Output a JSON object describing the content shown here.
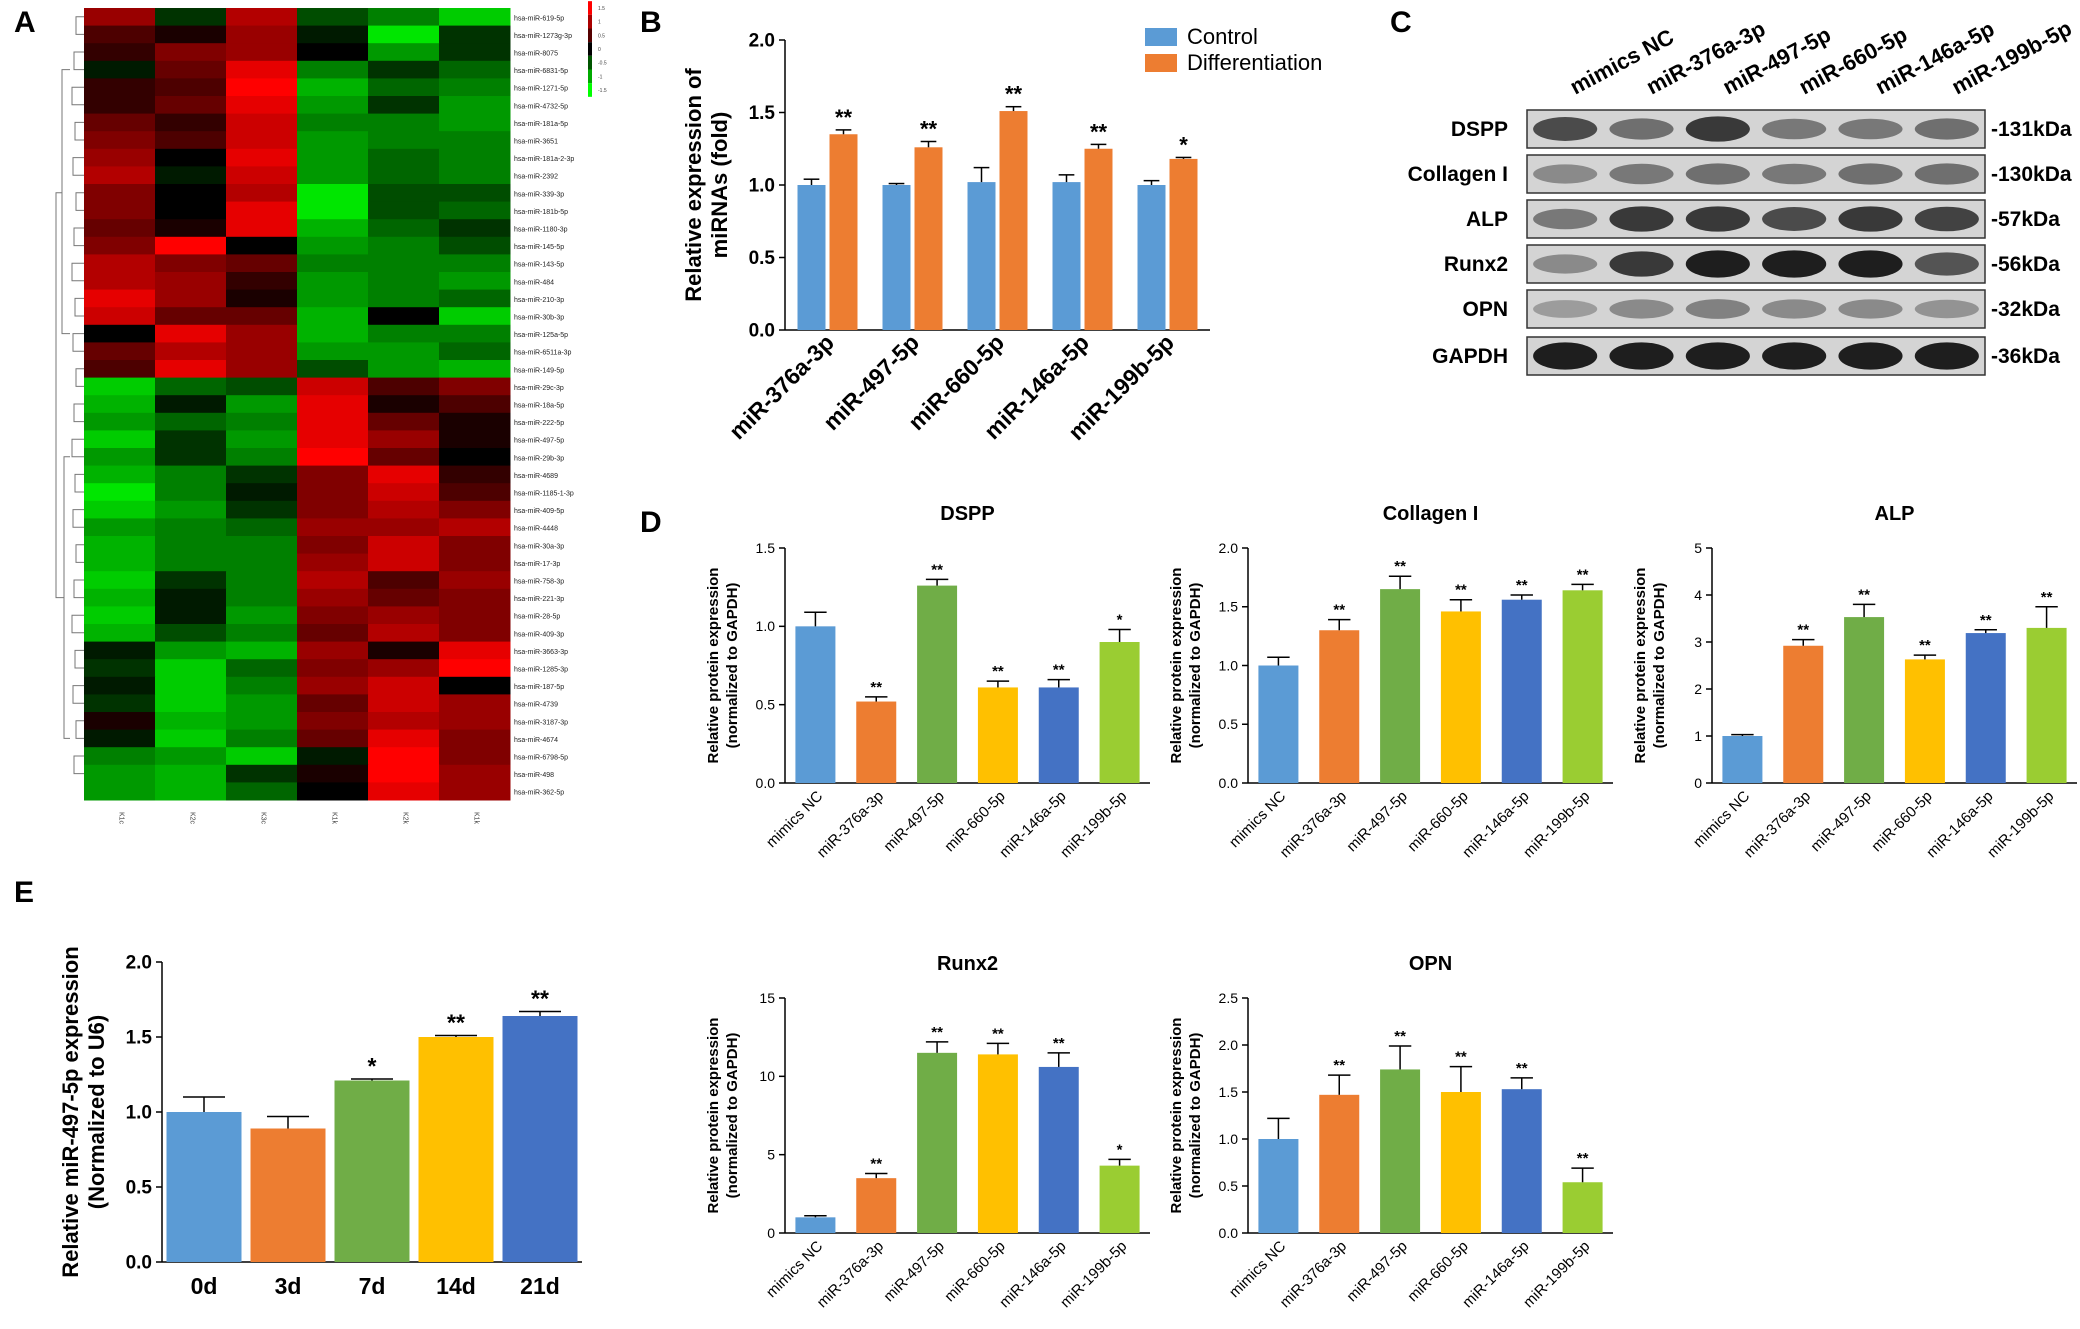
{
  "colors": {
    "control": "#5b9bd5",
    "differentiation": "#ed7d31",
    "mimics_nc": "#5b9bd5",
    "mir376": "#ed7d31",
    "mir497": "#70ad47",
    "mir660": "#ffc000",
    "mir146": "#4472c4",
    "mir199": "#9acd32",
    "day0": "#5b9bd5",
    "day3": "#ed7d31",
    "day7": "#70ad47",
    "day14": "#ffc000",
    "day21": "#4472c4",
    "heat_high": "#ff0000",
    "heat_low": "#00ff00",
    "heat_mid": "#000000"
  },
  "panels": {
    "A": "A",
    "B": "B",
    "C": "C",
    "D": "D",
    "E": "E"
  },
  "heatmap": {
    "rows": [
      "hsa-miR-619-5p",
      "hsa-miR-1273g-3p",
      "hsa-miR-8075",
      "hsa-miR-6831-5p",
      "hsa-miR-1271-5p",
      "hsa-miR-4732-5p",
      "hsa-miR-181a-5p",
      "hsa-miR-3651",
      "hsa-miR-181a-2-3p",
      "hsa-miR-2392",
      "hsa-miR-339-3p",
      "hsa-miR-181b-5p",
      "hsa-miR-1180-3p",
      "hsa-miR-145-5p",
      "hsa-miR-143-5p",
      "hsa-miR-484",
      "hsa-miR-210-3p",
      "hsa-miR-30b-3p",
      "hsa-miR-125a-5p",
      "hsa-miR-6511a-3p",
      "hsa-miR-149-5p",
      "hsa-miR-29c-3p",
      "hsa-miR-18a-5p",
      "hsa-miR-222-5p",
      "hsa-miR-497-5p",
      "hsa-miR-29b-3p",
      "hsa-miR-4689",
      "hsa-miR-1185-1-3p",
      "hsa-miR-409-5p",
      "hsa-miR-4448",
      "hsa-miR-30a-3p",
      "hsa-miR-17-3p",
      "hsa-miR-758-3p",
      "hsa-miR-221-3p",
      "hsa-miR-28-5p",
      "hsa-miR-409-3p",
      "hsa-miR-3663-3p",
      "hsa-miR-1285-3p",
      "hsa-miR-187-5p",
      "hsa-miR-4739",
      "hsa-miR-3187-3p",
      "hsa-miR-4674",
      "hsa-miR-6798-5p",
      "hsa-miR-498",
      "hsa-miR-362-5p"
    ],
    "columns": [
      "K1c",
      "K2c",
      "K3c",
      "K1k",
      "K2k",
      "K1k"
    ],
    "values": [
      [
        0.6,
        -0.2,
        0.7,
        -0.3,
        -0.5,
        -0.8
      ],
      [
        0.3,
        0.1,
        0.6,
        -0.1,
        -0.9,
        -0.2
      ],
      [
        0.2,
        0.5,
        0.6,
        0.0,
        -0.6,
        -0.2
      ],
      [
        -0.1,
        0.4,
        0.9,
        -0.5,
        -0.2,
        -0.4
      ],
      [
        0.2,
        0.3,
        1.0,
        -0.7,
        -0.4,
        -0.5
      ],
      [
        0.2,
        0.4,
        0.9,
        -0.6,
        -0.2,
        -0.6
      ],
      [
        0.4,
        0.2,
        0.8,
        -0.5,
        -0.5,
        -0.6
      ],
      [
        0.5,
        0.3,
        0.8,
        -0.6,
        -0.5,
        -0.5
      ],
      [
        0.6,
        0.0,
        0.9,
        -0.6,
        -0.4,
        -0.5
      ],
      [
        0.7,
        -0.1,
        0.8,
        -0.6,
        -0.4,
        -0.5
      ],
      [
        0.5,
        0.0,
        0.7,
        -0.9,
        -0.3,
        -0.3
      ],
      [
        0.5,
        0.0,
        0.9,
        -0.9,
        -0.3,
        -0.4
      ],
      [
        0.4,
        0.1,
        0.9,
        -0.7,
        -0.4,
        -0.2
      ],
      [
        0.5,
        1.0,
        0.0,
        -0.6,
        -0.5,
        -0.3
      ],
      [
        0.7,
        0.5,
        0.4,
        -0.5,
        -0.5,
        -0.5
      ],
      [
        0.7,
        0.6,
        0.2,
        -0.6,
        -0.5,
        -0.6
      ],
      [
        0.9,
        0.6,
        0.1,
        -0.6,
        -0.5,
        -0.4
      ],
      [
        0.8,
        0.4,
        0.4,
        -0.7,
        0.0,
        -0.8
      ],
      [
        0.0,
        0.9,
        0.6,
        -0.7,
        -0.5,
        -0.5
      ],
      [
        0.4,
        0.7,
        0.6,
        -0.6,
        -0.6,
        -0.4
      ],
      [
        0.3,
        0.9,
        0.6,
        -0.3,
        -0.6,
        -0.7
      ],
      [
        -0.8,
        -0.4,
        -0.3,
        0.8,
        0.3,
        0.5
      ],
      [
        -0.7,
        -0.1,
        -0.6,
        0.9,
        0.1,
        0.3
      ],
      [
        -0.6,
        -0.4,
        -0.5,
        0.9,
        0.4,
        0.1
      ],
      [
        -0.8,
        -0.2,
        -0.6,
        0.9,
        0.6,
        0.1
      ],
      [
        -0.6,
        -0.2,
        -0.5,
        1.0,
        0.4,
        0.0
      ],
      [
        -0.7,
        -0.5,
        -0.2,
        0.5,
        0.9,
        0.2
      ],
      [
        -0.9,
        -0.5,
        -0.1,
        0.5,
        0.8,
        0.3
      ],
      [
        -0.8,
        -0.6,
        -0.2,
        0.5,
        0.7,
        0.5
      ],
      [
        -0.6,
        -0.5,
        -0.4,
        0.6,
        0.6,
        0.7
      ],
      [
        -0.7,
        -0.5,
        -0.5,
        0.5,
        0.8,
        0.5
      ],
      [
        -0.7,
        -0.5,
        -0.5,
        0.6,
        0.8,
        0.5
      ],
      [
        -0.8,
        -0.2,
        -0.5,
        0.7,
        0.3,
        0.6
      ],
      [
        -0.7,
        -0.1,
        -0.5,
        0.6,
        0.4,
        0.5
      ],
      [
        -0.8,
        -0.1,
        -0.6,
        0.5,
        0.6,
        0.5
      ],
      [
        -0.7,
        -0.3,
        -0.5,
        0.4,
        0.7,
        0.5
      ],
      [
        -0.1,
        -0.6,
        -0.7,
        0.6,
        0.1,
        0.9
      ],
      [
        -0.2,
        -0.8,
        -0.4,
        0.5,
        0.6,
        1.0
      ],
      [
        -0.1,
        -0.8,
        -0.5,
        0.6,
        0.8,
        0.0
      ],
      [
        -0.2,
        -0.8,
        -0.6,
        0.4,
        0.8,
        0.6
      ],
      [
        0.1,
        -0.7,
        -0.6,
        0.5,
        0.7,
        0.6
      ],
      [
        -0.1,
        -0.8,
        -0.5,
        0.4,
        0.9,
        0.5
      ],
      [
        -0.5,
        -0.6,
        -0.8,
        -0.1,
        1.0,
        0.5
      ],
      [
        -0.6,
        -0.7,
        -0.2,
        0.1,
        1.0,
        0.6
      ],
      [
        -0.6,
        -0.7,
        -0.4,
        0.0,
        0.9,
        0.6
      ]
    ],
    "scale_labels": [
      "1.5",
      "1",
      "0.5",
      "0",
      "-0.5",
      "-1",
      "-1.5"
    ]
  },
  "chart_data": [
    {
      "id": "B",
      "type": "bar",
      "title": "",
      "ylabel": "Relative expression of miRNAs (fold)",
      "ylabel_lines": [
        "Relative expression of",
        "miRNAs (fold)"
      ],
      "categories": [
        "miR-376a-3p",
        "miR-497-5p",
        "miR-660-5p",
        "miR-146a-5p",
        "miR-199b-5p"
      ],
      "series": [
        {
          "name": "Control",
          "values": [
            1.0,
            1.0,
            1.02,
            1.02,
            1.0
          ],
          "errors": [
            0.04,
            0.01,
            0.1,
            0.05,
            0.03
          ]
        },
        {
          "name": "Differentiation",
          "values": [
            1.35,
            1.26,
            1.51,
            1.25,
            1.18
          ],
          "errors": [
            0.03,
            0.04,
            0.03,
            0.03,
            0.01
          ]
        }
      ],
      "significance": [
        "**",
        "**",
        "**",
        "**",
        "*"
      ],
      "ylim": [
        0,
        2.0
      ],
      "yticks": [
        "0.0",
        "0.5",
        "1.0",
        "1.5",
        "2.0"
      ],
      "legend": "top-right"
    },
    {
      "id": "D1",
      "type": "bar",
      "title": "DSPP",
      "ylabel_lines": [
        "Relative protein expression",
        "(normalized to GAPDH)"
      ],
      "categories": [
        "mimics NC",
        "miR-376a-3p",
        "miR-497-5p",
        "miR-660-5p",
        "miR-146a-5p",
        "miR-199b-5p"
      ],
      "values": [
        1.0,
        0.52,
        1.26,
        0.61,
        0.61,
        0.9
      ],
      "errors": [
        0.09,
        0.03,
        0.04,
        0.04,
        0.05,
        0.08
      ],
      "significance": [
        "",
        "**",
        "**",
        "**",
        "**",
        "*"
      ],
      "ylim": [
        0,
        1.5
      ],
      "yticks": [
        "0.0",
        "0.5",
        "1.0",
        "1.5"
      ]
    },
    {
      "id": "D2",
      "type": "bar",
      "title": "Collagen I",
      "ylabel_lines": [
        "Relative protein expression",
        "(normalized to GAPDH)"
      ],
      "categories": [
        "mimics NC",
        "miR-376a-3p",
        "miR-497-5p",
        "miR-660-5p",
        "miR-146a-5p",
        "miR-199b-5p"
      ],
      "values": [
        1.0,
        1.3,
        1.65,
        1.46,
        1.56,
        1.64
      ],
      "errors": [
        0.07,
        0.09,
        0.11,
        0.1,
        0.04,
        0.05
      ],
      "significance": [
        "",
        "**",
        "**",
        "**",
        "**",
        "**"
      ],
      "ylim": [
        0,
        2.0
      ],
      "yticks": [
        "0.0",
        "0.5",
        "1.0",
        "1.5",
        "2.0"
      ]
    },
    {
      "id": "D3",
      "type": "bar",
      "title": "ALP",
      "ylabel_lines": [
        "Relative protein expression",
        "(normalized to GAPDH)"
      ],
      "categories": [
        "mimics NC",
        "miR-376a-3p",
        "miR-497-5p",
        "miR-660-5p",
        "miR-146a-5p",
        "miR-199b-5p"
      ],
      "values": [
        1.0,
        2.92,
        3.53,
        2.63,
        3.19,
        3.3
      ],
      "errors": [
        0.03,
        0.13,
        0.27,
        0.09,
        0.07,
        0.45
      ],
      "significance": [
        "",
        "**",
        "**",
        "**",
        "**",
        "**"
      ],
      "ylim": [
        0,
        5
      ],
      "yticks": [
        "0",
        "1",
        "2",
        "3",
        "4",
        "5"
      ]
    },
    {
      "id": "D4",
      "type": "bar",
      "title": "Runx2",
      "ylabel_lines": [
        "Relative protein expression",
        "(normalized to GAPDH)"
      ],
      "categories": [
        "mimics NC",
        "miR-376a-3p",
        "miR-497-5p",
        "miR-660-5p",
        "miR-146a-5p",
        "miR-199b-5p"
      ],
      "values": [
        1.0,
        3.5,
        11.5,
        11.4,
        10.6,
        4.3
      ],
      "errors": [
        0.1,
        0.3,
        0.7,
        0.7,
        0.9,
        0.4
      ],
      "significance": [
        "",
        "**",
        "**",
        "**",
        "**",
        "*"
      ],
      "ylim": [
        0,
        15
      ],
      "yticks": [
        "0",
        "5",
        "10",
        "15"
      ]
    },
    {
      "id": "D5",
      "type": "bar",
      "title": "OPN",
      "ylabel_lines": [
        "Relative protein expression",
        "(normalized to GAPDH)"
      ],
      "categories": [
        "mimics NC",
        "miR-376a-3p",
        "miR-497-5p",
        "miR-660-5p",
        "miR-146a-5p",
        "miR-199b-5p"
      ],
      "values": [
        1.0,
        1.47,
        1.74,
        1.5,
        1.53,
        0.54
      ],
      "errors": [
        0.22,
        0.21,
        0.25,
        0.27,
        0.12,
        0.15
      ],
      "significance": [
        "",
        "**",
        "**",
        "**",
        "**",
        "**"
      ],
      "ylim": [
        0,
        2.5
      ],
      "yticks": [
        "0.0",
        "0.5",
        "1.0",
        "1.5",
        "2.0",
        "2.5"
      ]
    },
    {
      "id": "E",
      "type": "bar",
      "title": "",
      "ylabel_lines": [
        "Relative miR-497-5p expression",
        "(Normalized to U6)"
      ],
      "categories": [
        "0d",
        "3d",
        "7d",
        "14d",
        "21d"
      ],
      "values": [
        1.0,
        0.89,
        1.21,
        1.5,
        1.64
      ],
      "errors": [
        0.1,
        0.08,
        0.01,
        0.01,
        0.03
      ],
      "significance": [
        "",
        "",
        "*",
        "**",
        "**"
      ],
      "ylim": [
        0,
        2.0
      ],
      "yticks": [
        "0.0",
        "0.5",
        "1.0",
        "1.5",
        "2.0"
      ]
    }
  ],
  "blot": {
    "lanes": [
      "mimics NC",
      "miR-376a-3p",
      "miR-497-5p",
      "miR-660-5p",
      "miR-146a-5p",
      "miR-199b-5p"
    ],
    "bands": [
      {
        "name": "DSPP",
        "size": "131kDa",
        "intensity": [
          0.75,
          0.55,
          0.85,
          0.5,
          0.5,
          0.55
        ]
      },
      {
        "name": "Collagen I",
        "size": "130kDa",
        "intensity": [
          0.4,
          0.5,
          0.55,
          0.5,
          0.55,
          0.55
        ]
      },
      {
        "name": "ALP",
        "size": "57kDa",
        "intensity": [
          0.5,
          0.85,
          0.85,
          0.75,
          0.85,
          0.8
        ]
      },
      {
        "name": "Runx2",
        "size": "56kDa",
        "intensity": [
          0.4,
          0.85,
          1.0,
          1.0,
          1.0,
          0.7
        ]
      },
      {
        "name": "OPN",
        "size": "32kDa",
        "intensity": [
          0.3,
          0.4,
          0.45,
          0.4,
          0.4,
          0.35
        ]
      },
      {
        "name": "GAPDH",
        "size": "36kDa",
        "intensity": [
          1.0,
          1.0,
          1.0,
          1.0,
          1.0,
          1.0
        ]
      }
    ]
  }
}
